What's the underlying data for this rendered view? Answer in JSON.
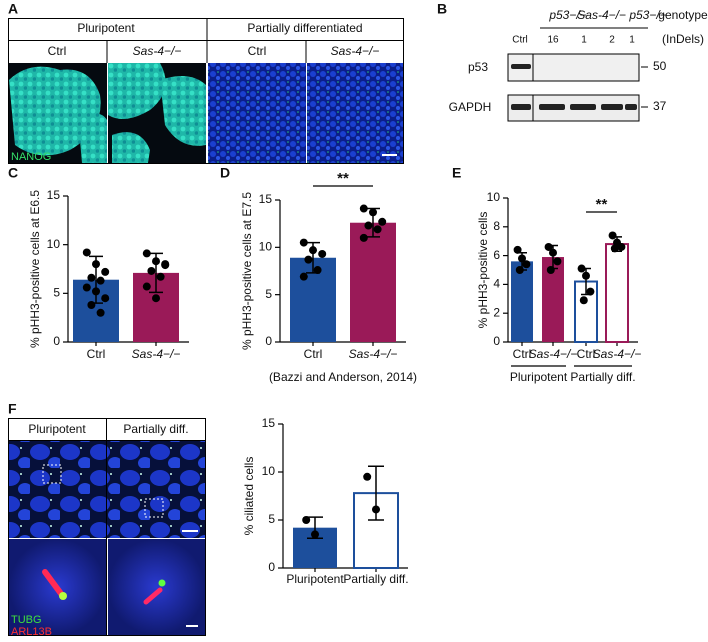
{
  "panels": {
    "A": {
      "letter": "A",
      "headers": [
        "Pluripotent",
        "Partially differentiated"
      ],
      "columns": [
        "Ctrl",
        "Sas-4−/−",
        "Ctrl",
        "Sas-4−/−"
      ],
      "stain": "NANOG"
    },
    "B": {
      "letter": "B",
      "genotype_groups": [
        "p53−/−",
        "Sas-4−/− p53−/−"
      ],
      "genotype": "genotype",
      "indels": "(InDels)",
      "lanes": [
        "Ctrl",
        "16",
        "1",
        "2",
        "1"
      ],
      "proteins": [
        "p53",
        "GAPDH"
      ],
      "markers": [
        "50",
        "37"
      ]
    },
    "C": {
      "letter": "C"
    },
    "D": {
      "letter": "D"
    },
    "E": {
      "letter": "E"
    },
    "F": {
      "letter": "F",
      "columns": [
        "Pluripotent",
        "Partially diff."
      ],
      "stains": [
        "TUBG",
        "ARL13B"
      ]
    }
  },
  "chart_data": [
    {
      "type": "bar",
      "ylabel": "% pHH3-positive cells at E6.5",
      "categories": [
        "Ctrl",
        "Sas-4−/−"
      ],
      "values": [
        6.4,
        7.1
      ],
      "errors": [
        2.4,
        2.0
      ],
      "colors": [
        "#1d4f9c",
        "#9a1a58"
      ],
      "hollow": [
        false,
        false
      ],
      "points": [
        [
          9.2,
          8.0,
          7.2,
          6.6,
          6.3,
          5.6,
          5.2,
          4.5,
          3.8,
          3.0
        ],
        [
          9.1,
          8.3,
          7.9,
          7.3,
          6.7,
          5.7,
          4.5,
          8.0
        ]
      ],
      "ylim": [
        0,
        15
      ],
      "yticks": [
        0,
        5,
        10,
        15
      ]
    },
    {
      "type": "bar",
      "ylabel": "% pHH3-positive cells at E7.5",
      "xlabel": "(Bazzi and Anderson, 2014)",
      "categories": [
        "Ctrl",
        "Sas-4−/−"
      ],
      "values": [
        8.9,
        12.6
      ],
      "errors": [
        1.6,
        1.5
      ],
      "colors": [
        "#1d4f9c",
        "#9a1a58"
      ],
      "hollow": [
        false,
        false
      ],
      "points": [
        [
          10.5,
          9.7,
          9.3,
          8.7,
          7.6,
          6.9
        ],
        [
          14.1,
          13.7,
          12.7,
          12.3,
          11.9,
          11.0
        ]
      ],
      "significance": "**",
      "ylim": [
        0,
        15
      ],
      "yticks": [
        0,
        5,
        10,
        15
      ]
    },
    {
      "type": "bar",
      "ylabel": "% pHH3-positive cells",
      "categories": [
        "Ctrl",
        "Sas-4−/−",
        "Ctrl",
        "Sas-4−/−"
      ],
      "groups": [
        "Pluripotent",
        "Partially diff."
      ],
      "values": [
        5.6,
        5.9,
        4.2,
        6.8
      ],
      "errors": [
        0.6,
        0.8,
        0.9,
        0.5
      ],
      "colors": [
        "#1d4f9c",
        "#9a1a58",
        "#1d4f9c",
        "#9a1a58"
      ],
      "hollow": [
        false,
        false,
        true,
        true
      ],
      "points": [
        [
          6.4,
          5.8,
          5.4,
          5.0
        ],
        [
          6.6,
          6.2,
          5.6,
          5.0
        ],
        [
          5.1,
          4.6,
          3.5,
          2.9
        ],
        [
          7.4,
          6.9,
          6.6,
          6.5
        ]
      ],
      "significance": "**",
      "ylim": [
        0,
        10
      ],
      "yticks": [
        0,
        2,
        4,
        6,
        8,
        10
      ]
    },
    {
      "type": "bar",
      "ylabel": "% ciliated cells",
      "categories": [
        "Pluripotent",
        "Partially diff."
      ],
      "values": [
        4.2,
        7.8
      ],
      "errors": [
        1.1,
        2.8
      ],
      "colors": [
        "#1d4f9c",
        "#1d4f9c"
      ],
      "hollow": [
        false,
        true
      ],
      "points": [
        [
          5.0,
          3.5
        ],
        [
          9.5,
          6.1
        ]
      ],
      "ylim": [
        0,
        15
      ],
      "yticks": [
        0,
        5,
        10,
        15
      ]
    }
  ]
}
